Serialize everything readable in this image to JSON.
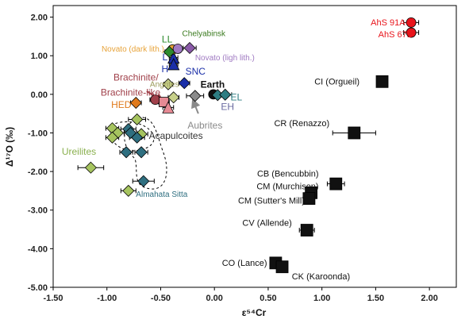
{
  "chart_data": {
    "type": "scatter",
    "title": "",
    "xlabel": "ε⁵⁴Cr",
    "ylabel": "Δ¹⁷O (‰)",
    "xlim": [
      -1.5,
      2.25
    ],
    "ylim": [
      -5.0,
      2.3
    ],
    "xticks": [
      -1.5,
      -1.0,
      -0.5,
      0.0,
      0.5,
      1.0,
      1.5,
      2.0
    ],
    "yticks": [
      2.0,
      1.0,
      0.0,
      -1.0,
      -2.0,
      -3.0,
      -4.0,
      -5.0
    ],
    "xtick_labels": [
      "-1.50",
      "-1.00",
      "-0.50",
      "0.00",
      "0.50",
      "1.00",
      "1.50",
      "2.00"
    ],
    "ytick_labels": [
      "2.00",
      "1.00",
      "0.00",
      "-1.00",
      "-2.00",
      "-3.00",
      "-4.00",
      "-5.00"
    ],
    "grid": false,
    "legend": "none",
    "colors": {
      "red": "#e8141b",
      "black": "#111111",
      "ureilite": "#a6c45f",
      "acapulcoite": "#2f6f80",
      "enstatite": "#2e7d82",
      "aubrite": "#8a8a8a",
      "snc": "#1b2fa8",
      "novato_dark": "#e7a33a",
      "novato_light": "#a07ac2",
      "chelyabinsk": "#8a5aa8",
      "ll": "#2e8b2e",
      "hed": "#e07a1c",
      "brachinite": "#a0404a",
      "angrite": "#c7d08a",
      "pink": "#e68a94"
    },
    "points": [
      {
        "group": "red",
        "shape": "circle",
        "x": 1.83,
        "y": 1.86,
        "xerr": 0.07
      },
      {
        "group": "red",
        "shape": "circle",
        "x": 1.83,
        "y": 1.6,
        "xerr": 0.07
      },
      {
        "group": "black",
        "shape": "square",
        "x": 1.56,
        "y": 0.33,
        "xerr": 0.05
      },
      {
        "group": "black",
        "shape": "square",
        "x": 1.3,
        "y": -1.0,
        "xerr": 0.2
      },
      {
        "group": "black",
        "shape": "square",
        "x": 1.13,
        "y": -2.32,
        "xerr": 0.08
      },
      {
        "group": "black",
        "shape": "square",
        "x": 0.9,
        "y": -2.55,
        "xerr": 0.05
      },
      {
        "group": "black",
        "shape": "square",
        "x": 0.88,
        "y": -2.7,
        "xerr": 0.05
      },
      {
        "group": "black",
        "shape": "square",
        "x": 0.86,
        "y": -3.52,
        "xerr": 0.07
      },
      {
        "group": "black",
        "shape": "square",
        "x": 0.57,
        "y": -4.37,
        "xerr": 0.05
      },
      {
        "group": "black",
        "shape": "square",
        "x": 0.63,
        "y": -4.47,
        "xerr": 0.05
      },
      {
        "group": "black",
        "shape": "circle",
        "x": -0.01,
        "y": 0.0,
        "xerr": 0
      },
      {
        "group": "aubrite",
        "shape": "diamond",
        "x": -0.18,
        "y": -0.04,
        "xerr": 0.08
      },
      {
        "group": "enstatite",
        "shape": "diamond",
        "x": 0.03,
        "y": -0.02,
        "xerr": 0.06
      },
      {
        "group": "enstatite",
        "shape": "diamond",
        "x": 0.1,
        "y": -0.01,
        "xerr": 0.06
      },
      {
        "group": "snc",
        "shape": "triangle",
        "x": -0.38,
        "y": 0.95,
        "xerr": 0.04
      },
      {
        "group": "snc",
        "shape": "triangle",
        "x": -0.38,
        "y": 0.78,
        "xerr": 0.04
      },
      {
        "group": "novato_dark",
        "shape": "circle",
        "x": -0.39,
        "y": 1.16,
        "xerr": 0.04
      },
      {
        "group": "ll",
        "shape": "diamond",
        "x": -0.42,
        "y": 1.1,
        "xerr": 0.04
      },
      {
        "group": "chelyabinsk",
        "shape": "diamond",
        "x": -0.23,
        "y": 1.2,
        "xerr": 0.06
      },
      {
        "group": "novato_light",
        "shape": "circle",
        "x": -0.34,
        "y": 1.18,
        "xerr": 0.04
      },
      {
        "group": "angrite",
        "shape": "diamond",
        "x": -0.43,
        "y": 0.26,
        "xerr": 0.04
      },
      {
        "group": "snc",
        "shape": "diamond",
        "x": -0.28,
        "y": 0.29,
        "xerr": 0.05
      },
      {
        "group": "hed",
        "shape": "diamond",
        "x": -0.73,
        "y": -0.22,
        "xerr": 0.05
      },
      {
        "group": "brachinite",
        "shape": "circle",
        "x": -0.55,
        "y": -0.14,
        "xerr": 0.05
      },
      {
        "group": "pink",
        "shape": "square",
        "x": -0.47,
        "y": -0.2,
        "xerr": 0.05
      },
      {
        "group": "pink",
        "shape": "triangle",
        "x": -0.43,
        "y": -0.34,
        "xerr": 0.05
      },
      {
        "group": "angrite",
        "shape": "diamond",
        "x": -0.38,
        "y": -0.08,
        "xerr": 0.05
      },
      {
        "group": "ureilite",
        "shape": "diamond",
        "x": -0.72,
        "y": -0.65,
        "xerr": 0.08
      },
      {
        "group": "ureilite",
        "shape": "diamond",
        "x": -0.95,
        "y": -0.88,
        "xerr": 0.06
      },
      {
        "group": "ureilite",
        "shape": "diamond",
        "x": -0.9,
        "y": -1.0,
        "xerr": 0.06
      },
      {
        "group": "ureilite",
        "shape": "diamond",
        "x": -0.95,
        "y": -1.12,
        "xerr": 0.06
      },
      {
        "group": "ureilite",
        "shape": "diamond",
        "x": -0.68,
        "y": -1.03,
        "xerr": 0.06
      },
      {
        "group": "ureilite",
        "shape": "diamond",
        "x": -1.15,
        "y": -1.9,
        "xerr": 0.12
      },
      {
        "group": "ureilite",
        "shape": "diamond",
        "x": -0.8,
        "y": -2.5,
        "xerr": 0.07
      },
      {
        "group": "acapulcoite",
        "shape": "diamond",
        "x": -0.8,
        "y": -0.9,
        "xerr": 0.07
      },
      {
        "group": "acapulcoite",
        "shape": "diamond",
        "x": -0.78,
        "y": -1.0,
        "xerr": 0.06
      },
      {
        "group": "acapulcoite",
        "shape": "diamond",
        "x": -0.72,
        "y": -1.12,
        "xerr": 0.07
      },
      {
        "group": "acapulcoite",
        "shape": "diamond",
        "x": -0.82,
        "y": -1.5,
        "xerr": 0.06
      },
      {
        "group": "acapulcoite",
        "shape": "diamond",
        "x": -0.68,
        "y": -1.5,
        "xerr": 0.06
      },
      {
        "group": "acapulcoite",
        "shape": "diamond",
        "x": -0.66,
        "y": -2.25,
        "xerr": 0.1
      }
    ],
    "annotations": [
      {
        "text": "AhS 91A-7",
        "x": 1.65,
        "y": 1.86,
        "color": "#e8141b",
        "size": 11,
        "bold": false,
        "anchor": "middle"
      },
      {
        "text": "AhS 671",
        "x": 1.68,
        "y": 1.56,
        "color": "#e8141b",
        "size": 11,
        "bold": false,
        "anchor": "middle"
      },
      {
        "text": "LL",
        "x": -0.44,
        "y": 1.43,
        "color": "#2e8b2e",
        "size": 12,
        "bold": false,
        "anchor": "middle"
      },
      {
        "text": "Chelyabinsk",
        "x": -0.3,
        "y": 1.58,
        "color": "#3a7a1e",
        "size": 10,
        "bold": false,
        "anchor": "start"
      },
      {
        "text": "Novato (dark lith.)",
        "x": -1.05,
        "y": 1.18,
        "color": "#e7a33a",
        "size": 10,
        "bold": false,
        "anchor": "start"
      },
      {
        "text": "L",
        "x": -0.46,
        "y": 0.97,
        "color": "#1b2fa8",
        "size": 12,
        "bold": false,
        "anchor": "middle"
      },
      {
        "text": "Novato (ligh lith.)",
        "x": -0.18,
        "y": 0.95,
        "color": "#a07ac2",
        "size": 10,
        "bold": false,
        "anchor": "start"
      },
      {
        "text": "H",
        "x": -0.46,
        "y": 0.66,
        "color": "#1b2fa8",
        "size": 12,
        "bold": false,
        "anchor": "middle"
      },
      {
        "text": "SNC",
        "x": -0.27,
        "y": 0.6,
        "color": "#1b2fa8",
        "size": 12,
        "bold": false,
        "anchor": "start"
      },
      {
        "text": "Brachinite/",
        "x": -0.73,
        "y": 0.44,
        "color": "#a0404a",
        "size": 12,
        "bold": false,
        "anchor": "middle"
      },
      {
        "text": "Brachinite-like",
        "x": -0.78,
        "y": 0.05,
        "color": "#a0404a",
        "size": 12,
        "bold": false,
        "anchor": "middle"
      },
      {
        "text": "Angrites",
        "x": -0.6,
        "y": 0.26,
        "color": "#9a9a5a",
        "size": 10,
        "bold": false,
        "anchor": "start"
      },
      {
        "text": "Earth",
        "x": -0.13,
        "y": 0.26,
        "color": "#111111",
        "size": 12,
        "bold": true,
        "anchor": "start"
      },
      {
        "text": "EL",
        "x": 0.15,
        "y": -0.07,
        "color": "#2e7d82",
        "size": 12,
        "bold": false,
        "anchor": "start"
      },
      {
        "text": "EH",
        "x": 0.06,
        "y": -0.32,
        "color": "#6a6aa0",
        "size": 12,
        "bold": false,
        "anchor": "start"
      },
      {
        "text": "Aubrites",
        "x": -0.25,
        "y": -0.8,
        "color": "#8a8a8a",
        "size": 12,
        "bold": false,
        "anchor": "start"
      },
      {
        "text": "HED",
        "x": -0.96,
        "y": -0.27,
        "color": "#e07a1c",
        "size": 12,
        "bold": false,
        "anchor": "start"
      },
      {
        "text": "Acapulcoites",
        "x": -0.61,
        "y": -1.07,
        "color": "#333333",
        "size": 12,
        "bold": false,
        "anchor": "start"
      },
      {
        "text": "Ureilites",
        "x": -1.42,
        "y": -1.48,
        "color": "#8ab04e",
        "size": 12,
        "bold": false,
        "anchor": "start"
      },
      {
        "text": "Almahata Sitta",
        "x": -0.73,
        "y": -2.58,
        "color": "#2f6f80",
        "size": 10,
        "bold": false,
        "anchor": "start"
      },
      {
        "text": "CI (Orgueil)",
        "x": 1.35,
        "y": 0.33,
        "color": "#111111",
        "size": 11,
        "bold": false,
        "anchor": "end"
      },
      {
        "text": "CR (Renazzo)",
        "x": 1.07,
        "y": -0.75,
        "color": "#111111",
        "size": 11,
        "bold": false,
        "anchor": "end"
      },
      {
        "text": "CB (Bencubbin)",
        "x": 0.97,
        "y": -2.05,
        "color": "#111111",
        "size": 11,
        "bold": false,
        "anchor": "end"
      },
      {
        "text": "CM (Murchison)",
        "x": 0.97,
        "y": -2.38,
        "color": "#111111",
        "size": 11,
        "bold": false,
        "anchor": "end"
      },
      {
        "text": "CM (Sutter's Mill)",
        "x": 0.84,
        "y": -2.75,
        "color": "#111111",
        "size": 11,
        "bold": false,
        "anchor": "end"
      },
      {
        "text": "CV (Allende)",
        "x": 0.72,
        "y": -3.33,
        "color": "#111111",
        "size": 11,
        "bold": false,
        "anchor": "end"
      },
      {
        "text": "CO (Lance)",
        "x": 0.49,
        "y": -4.37,
        "color": "#111111",
        "size": 11,
        "bold": false,
        "anchor": "end"
      },
      {
        "text": "CK (Karoonda)",
        "x": 0.72,
        "y": -4.72,
        "color": "#111111",
        "size": 11,
        "bold": false,
        "anchor": "start"
      }
    ],
    "arrows": [
      {
        "x1": -0.63,
        "y1": 0.08,
        "x2": -0.48,
        "y2": -0.18,
        "color": "#a0404a"
      },
      {
        "x1": -0.15,
        "y1": -0.5,
        "x2": -0.2,
        "y2": -0.15,
        "color": "#8a8a8a"
      }
    ]
  }
}
